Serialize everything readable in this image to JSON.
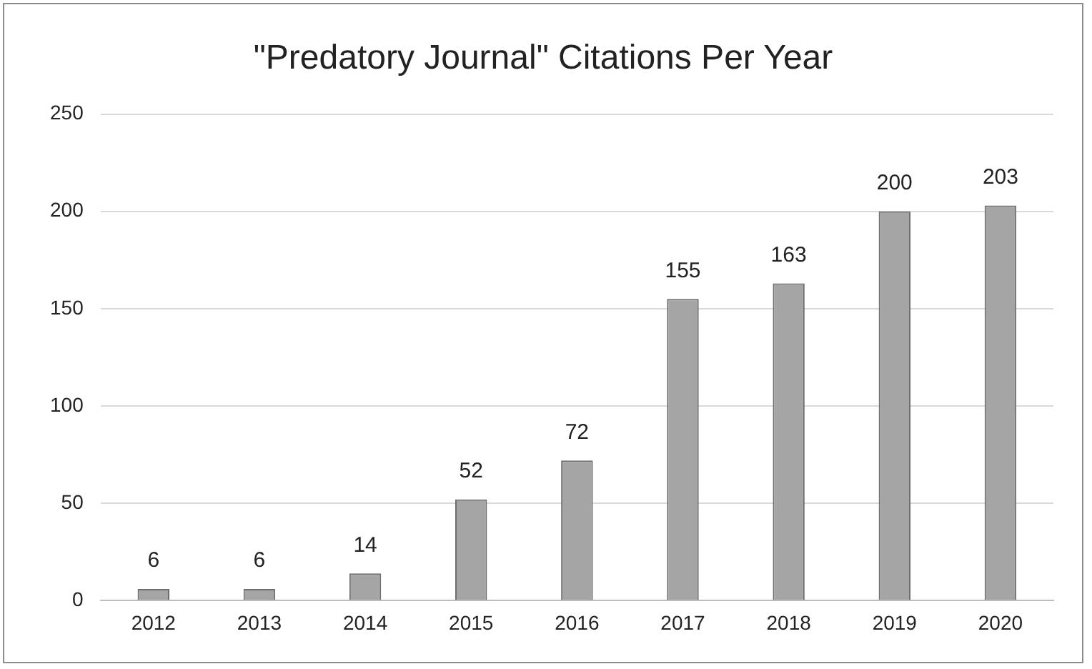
{
  "chart_data": {
    "type": "bar",
    "title": "\"Predatory Journal\" Citations Per Year",
    "categories": [
      "2012",
      "2013",
      "2014",
      "2015",
      "2016",
      "2017",
      "2018",
      "2019",
      "2020"
    ],
    "values": [
      6,
      6,
      14,
      52,
      72,
      155,
      163,
      200,
      203
    ],
    "color": "#a5a5a5",
    "ylim": [
      0,
      250
    ],
    "yticks": [
      0,
      50,
      100,
      150,
      200,
      250
    ],
    "grid": "y",
    "data_labels": true
  }
}
